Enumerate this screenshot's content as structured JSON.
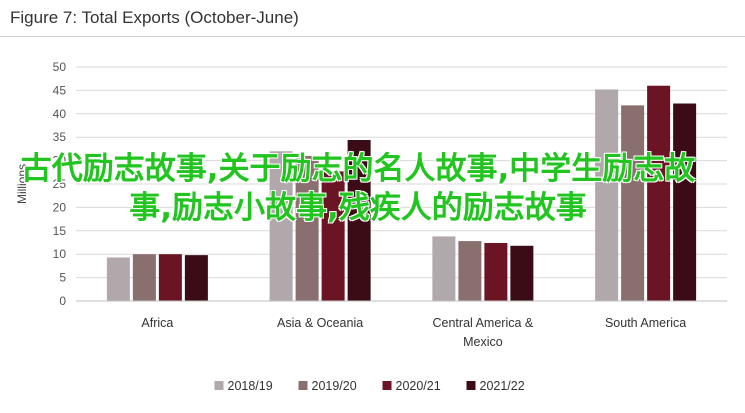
{
  "chart_data": {
    "type": "bar",
    "title": "Figure 7: Total Exports (October-June)",
    "ylabel": "Millions",
    "xlabel": "",
    "ylim": [
      0,
      50
    ],
    "yticks": [
      0,
      5,
      10,
      15,
      20,
      25,
      30,
      35,
      40,
      45,
      50
    ],
    "grid": true,
    "legend_position": "bottom",
    "categories": [
      "Africa",
      "Asia & Oceania",
      "Central America & Mexico",
      "South America"
    ],
    "series": [
      {
        "name": "2018/19",
        "color": "#b0a8aa",
        "values": [
          9.3,
          32.0,
          13.8,
          45.2
        ]
      },
      {
        "name": "2019/20",
        "color": "#8a6f6f",
        "values": [
          10.0,
          31.0,
          12.8,
          41.8
        ]
      },
      {
        "name": "2020/21",
        "color": "#6b1424",
        "values": [
          10.0,
          27.7,
          12.4,
          46.0
        ]
      },
      {
        "name": "2021/22",
        "color": "#3b0c16",
        "values": [
          9.8,
          34.4,
          11.8,
          42.2
        ]
      }
    ]
  },
  "overlay": {
    "text": "古代励志故事,关于励志的名人故事,中学生励志故事,励志小故事,残疾人的励志故事"
  }
}
